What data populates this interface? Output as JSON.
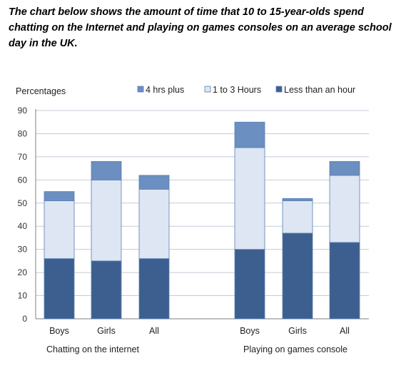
{
  "intro_text": "The chart below shows the amount of time that 10 to 15-year-olds spend chatting on the Internet and playing on games consoles on an average school day in the UK.",
  "chart_data": {
    "type": "bar",
    "stacked": true,
    "ylabel": "Percentages",
    "ylim": [
      0,
      90
    ],
    "yticks": [
      0,
      10,
      20,
      30,
      40,
      50,
      60,
      70,
      80,
      90
    ],
    "grid": true,
    "legend_position": "top-right",
    "groups": [
      {
        "label": "Chatting on the internet",
        "categories": [
          "Boys",
          "Girls",
          "All"
        ]
      },
      {
        "label": "Playing on games console",
        "categories": [
          "Boys",
          "Girls",
          "All"
        ]
      }
    ],
    "categories": [
      "Boys",
      "Girls",
      "All",
      "Boys",
      "Girls",
      "All"
    ],
    "series": [
      {
        "name": "Less than an hour",
        "color": "#3c5f8f",
        "values": [
          26,
          25,
          26,
          30,
          37,
          33
        ]
      },
      {
        "name": "1 to 3 Hours",
        "color": "#dde6f2",
        "values": [
          25,
          35,
          30,
          44,
          14,
          29
        ]
      },
      {
        "name": "4 hrs plus",
        "color": "#6a8fc0",
        "values": [
          4,
          8,
          6,
          11,
          1,
          6
        ]
      }
    ],
    "legend_order": [
      "4 hrs plus",
      "1 to 3 Hours",
      "Less than an hour"
    ]
  }
}
